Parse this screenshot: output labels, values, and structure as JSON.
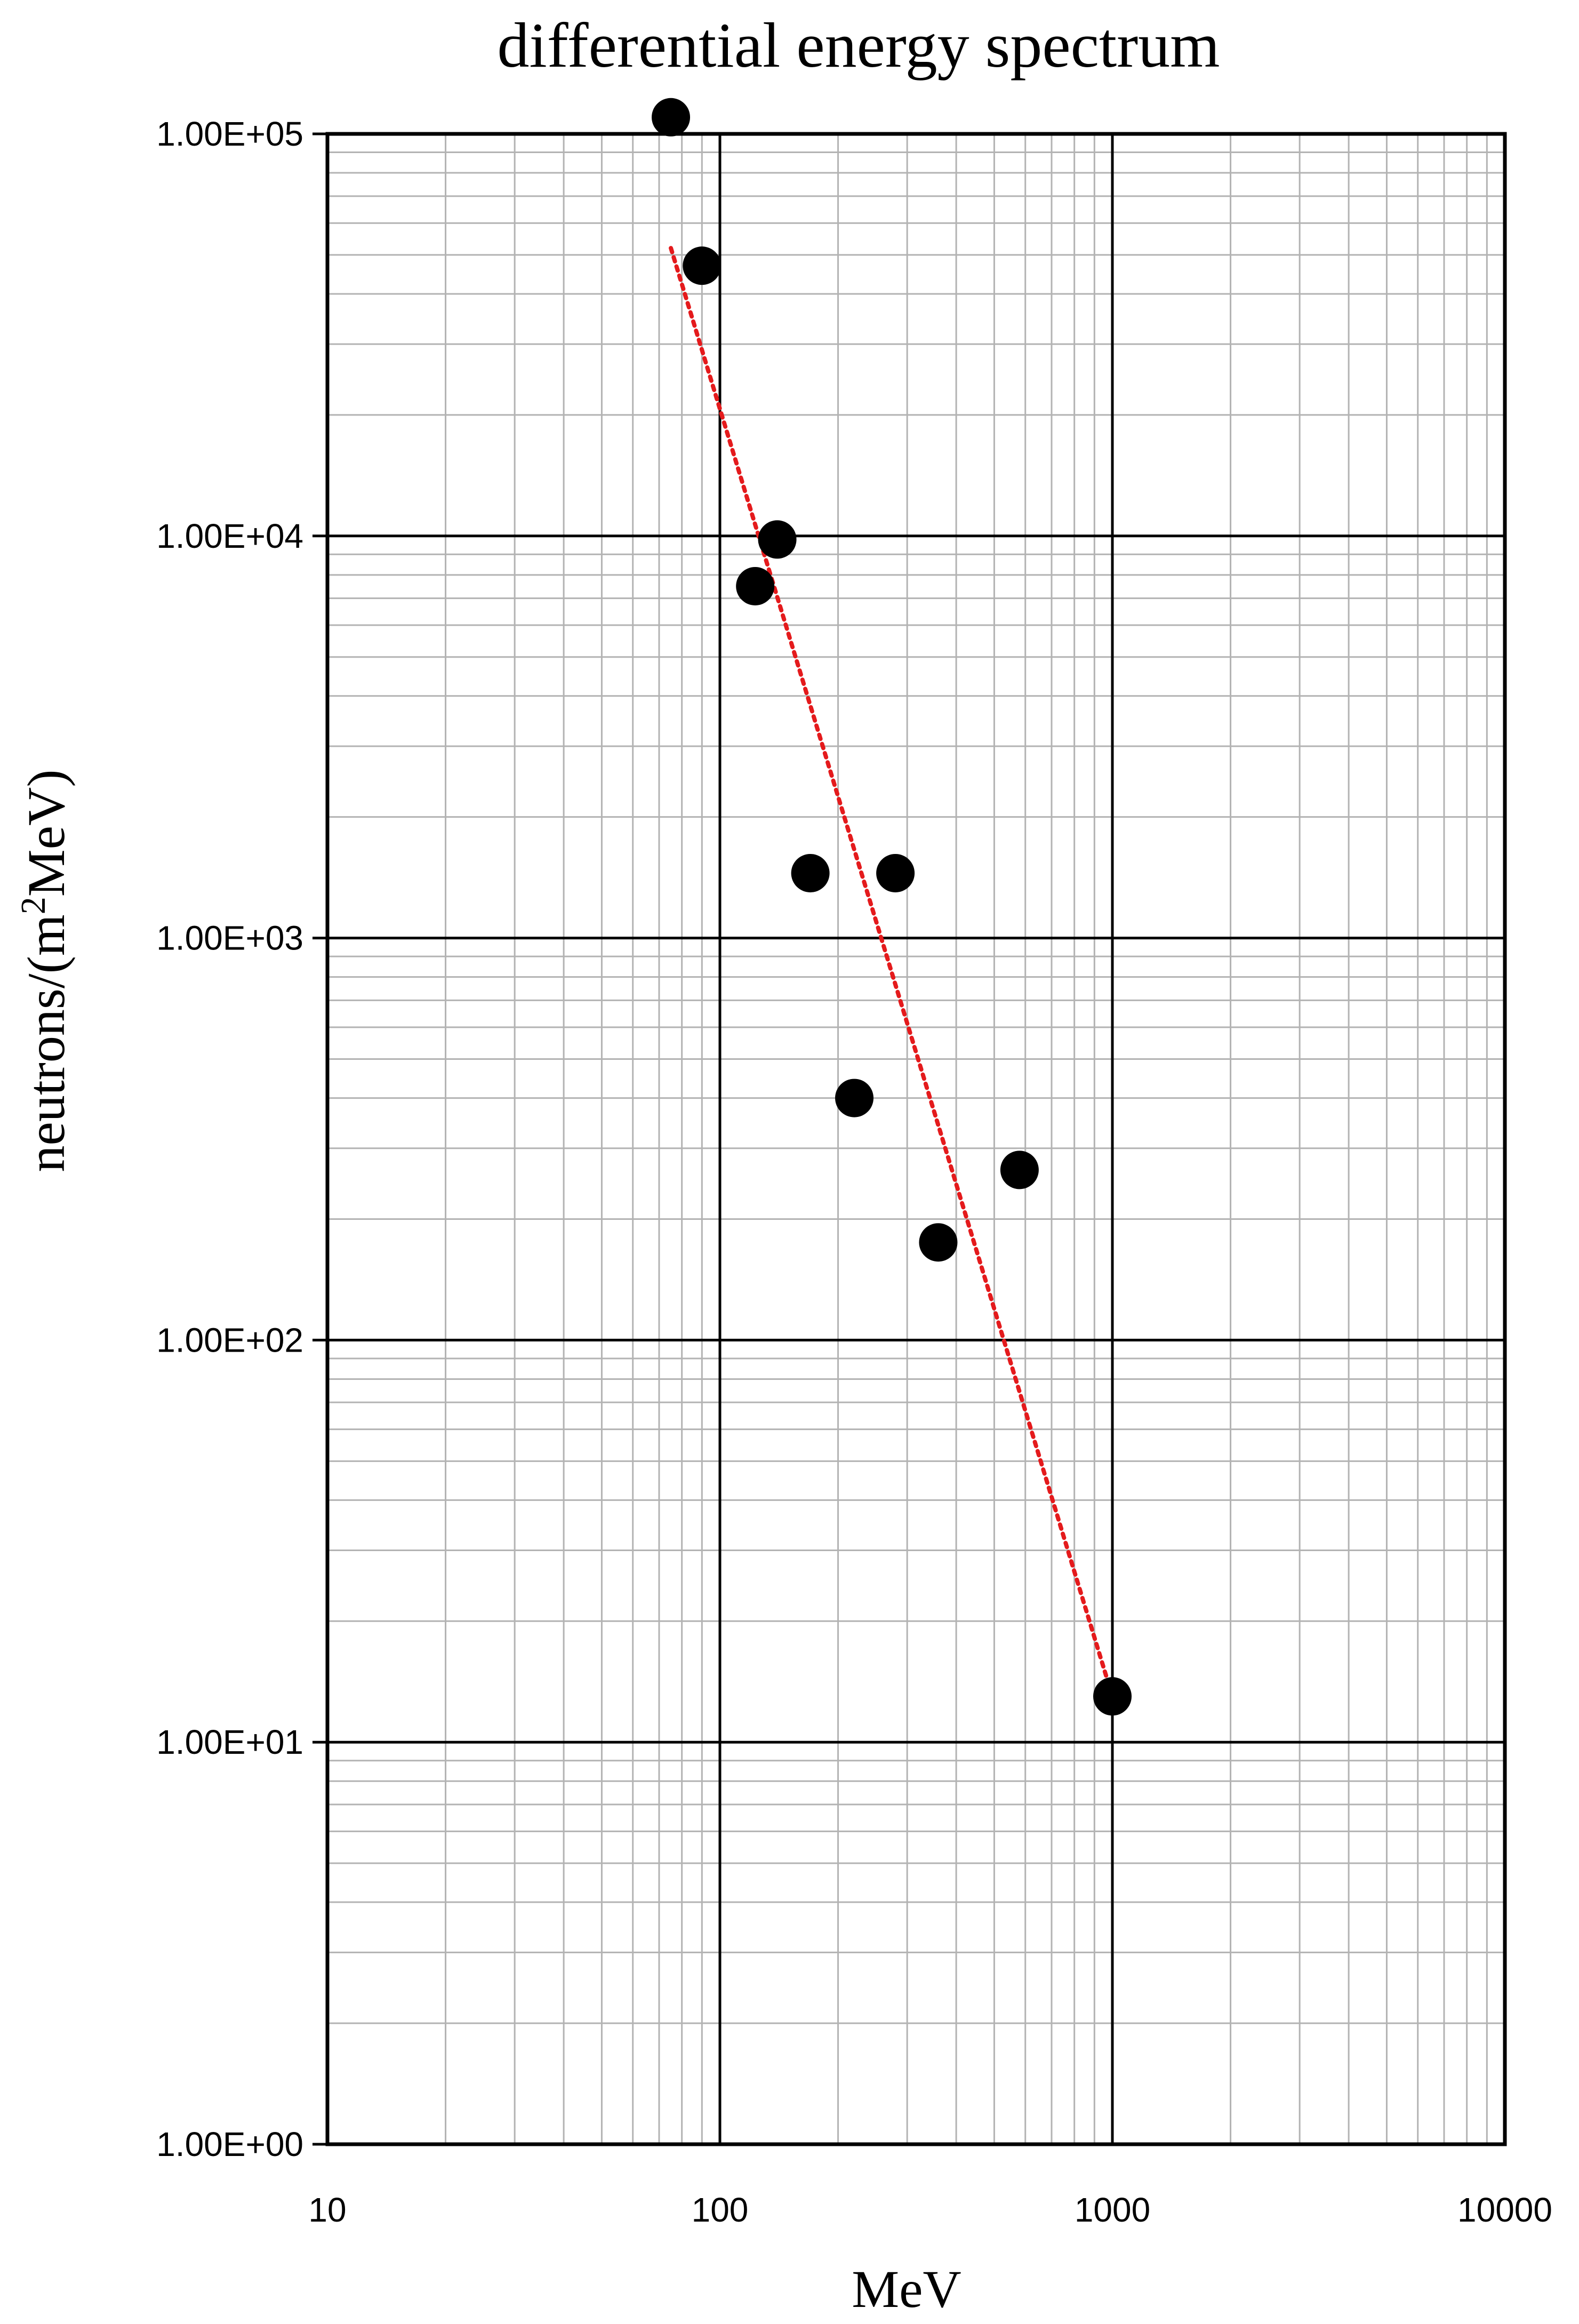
{
  "chart_data": {
    "type": "scatter",
    "title": "differential energy spectrum",
    "xlabel": "MeV",
    "ylabel_main": "neutrons/(m",
    "ylabel_sup": "2",
    "ylabel_tail": "MeV)",
    "x_scale": "log",
    "y_scale": "log",
    "xlim": [
      10,
      10000
    ],
    "ylim": [
      1,
      100000
    ],
    "x_ticks": [
      {
        "value": 10,
        "label": "10"
      },
      {
        "value": 100,
        "label": "100"
      },
      {
        "value": 1000,
        "label": "1000"
      },
      {
        "value": 10000,
        "label": "10000"
      }
    ],
    "y_ticks": [
      {
        "value": 1,
        "label": "1.00E+00"
      },
      {
        "value": 10,
        "label": "1.00E+01"
      },
      {
        "value": 100,
        "label": "1.00E+02"
      },
      {
        "value": 1000,
        "label": "1.00E+03"
      },
      {
        "value": 10000,
        "label": "1.00E+04"
      },
      {
        "value": 100000,
        "label": "1.00E+05"
      }
    ],
    "grid": true,
    "legend": "none",
    "series": [
      {
        "style": "markers",
        "color": "#000000",
        "points": [
          {
            "x": 75,
            "y": 110000
          },
          {
            "x": 90,
            "y": 47000
          },
          {
            "x": 140,
            "y": 9800
          },
          {
            "x": 123,
            "y": 7500
          },
          {
            "x": 170,
            "y": 1450
          },
          {
            "x": 280,
            "y": 1450
          },
          {
            "x": 220,
            "y": 400
          },
          {
            "x": 580,
            "y": 265
          },
          {
            "x": 360,
            "y": 175
          },
          {
            "x": 1000,
            "y": 13
          }
        ]
      }
    ],
    "trendline": {
      "style": "dotted",
      "color": "#e41a1c",
      "points": [
        {
          "x": 75,
          "y": 52000
        },
        {
          "x": 1000,
          "y": 13
        }
      ]
    }
  }
}
